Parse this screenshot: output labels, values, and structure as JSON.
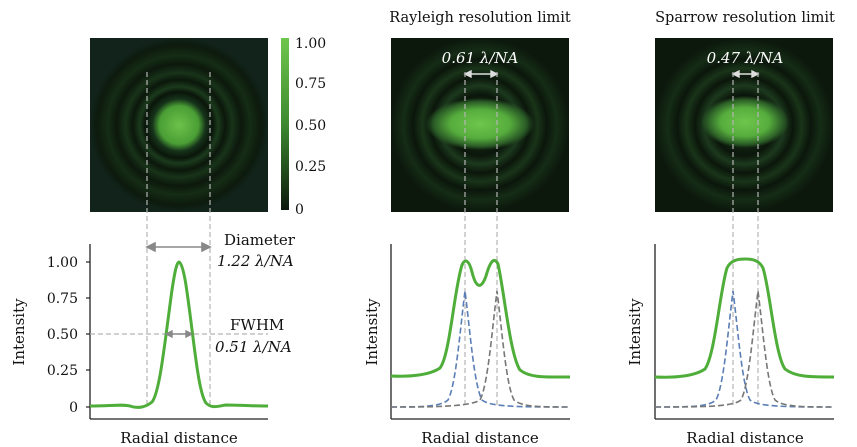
{
  "colors": {
    "accent": "#4fae3a",
    "dark_field": "#0c1a0c",
    "psf_a": "#3a8f3a",
    "psf_b": "#5aa9b5",
    "axis": "#222222",
    "guide": "#aaaaaa"
  },
  "colorbar": {
    "ticks": [
      "1.00",
      "0.75",
      "0.50",
      "0.25",
      "0"
    ]
  },
  "panels": [
    {
      "title": "",
      "spot_label": "",
      "annotations": [
        {
          "line1": "Diameter",
          "line2": "1.22 λ/NA"
        },
        {
          "line1": "FWHM",
          "line2": "0.51 λ/NA"
        }
      ],
      "ylabel": "Intensity",
      "xlabel": "Radial distance",
      "yticks": [
        "1.00",
        "0.75",
        "0.50",
        "0.25",
        "0"
      ]
    },
    {
      "title": "Rayleigh resolution limit",
      "spot_label": "0.61 λ/NA",
      "ylabel": "Intensity",
      "xlabel": "Radial distance"
    },
    {
      "title": "Sparrow resolution limit",
      "spot_label": "0.47 λ/NA",
      "ylabel": "Intensity",
      "xlabel": "Radial distance"
    }
  ]
}
